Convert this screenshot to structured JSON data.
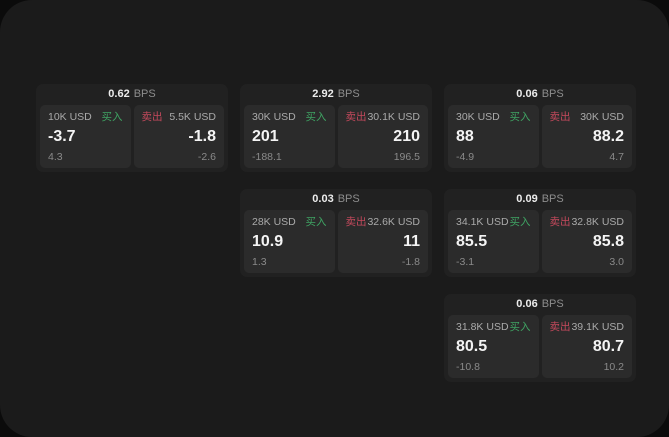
{
  "labels": {
    "bps_unit": "BPS",
    "buy": "买入",
    "sell": "卖出"
  },
  "colors": {
    "buy": "#3fa463",
    "sell": "#c4495c",
    "panel_bg": "#1b1b1b",
    "card_bg": "#212121",
    "pane_bg": "#2b2b2b"
  },
  "cards": [
    {
      "col": 1,
      "row": 1,
      "bps": "0.62",
      "buy": {
        "amount": "10K USD",
        "value": "-3.7",
        "sub": "4.3"
      },
      "sell": {
        "amount": "5.5K USD",
        "value": "-1.8",
        "sub": "-2.6"
      }
    },
    {
      "col": 2,
      "row": 1,
      "bps": "2.92",
      "buy": {
        "amount": "30K USD",
        "value": "201",
        "sub": "-188.1"
      },
      "sell": {
        "amount": "30.1K USD",
        "value": "210",
        "sub": "196.5"
      }
    },
    {
      "col": 3,
      "row": 1,
      "bps": "0.06",
      "buy": {
        "amount": "30K USD",
        "value": "88",
        "sub": "-4.9"
      },
      "sell": {
        "amount": "30K USD",
        "value": "88.2",
        "sub": "4.7"
      }
    },
    {
      "col": 2,
      "row": 2,
      "bps": "0.03",
      "buy": {
        "amount": "28K USD",
        "value": "10.9",
        "sub": "1.3"
      },
      "sell": {
        "amount": "32.6K USD",
        "value": "11",
        "sub": "-1.8"
      }
    },
    {
      "col": 3,
      "row": 2,
      "bps": "0.09",
      "buy": {
        "amount": "34.1K USD",
        "value": "85.5",
        "sub": "-3.1"
      },
      "sell": {
        "amount": "32.8K USD",
        "value": "85.8",
        "sub": "3.0"
      }
    },
    {
      "col": 3,
      "row": 3,
      "bps": "0.06",
      "buy": {
        "amount": "31.8K USD",
        "value": "80.5",
        "sub": "-10.8"
      },
      "sell": {
        "amount": "39.1K USD",
        "value": "80.7",
        "sub": "10.2"
      }
    }
  ]
}
